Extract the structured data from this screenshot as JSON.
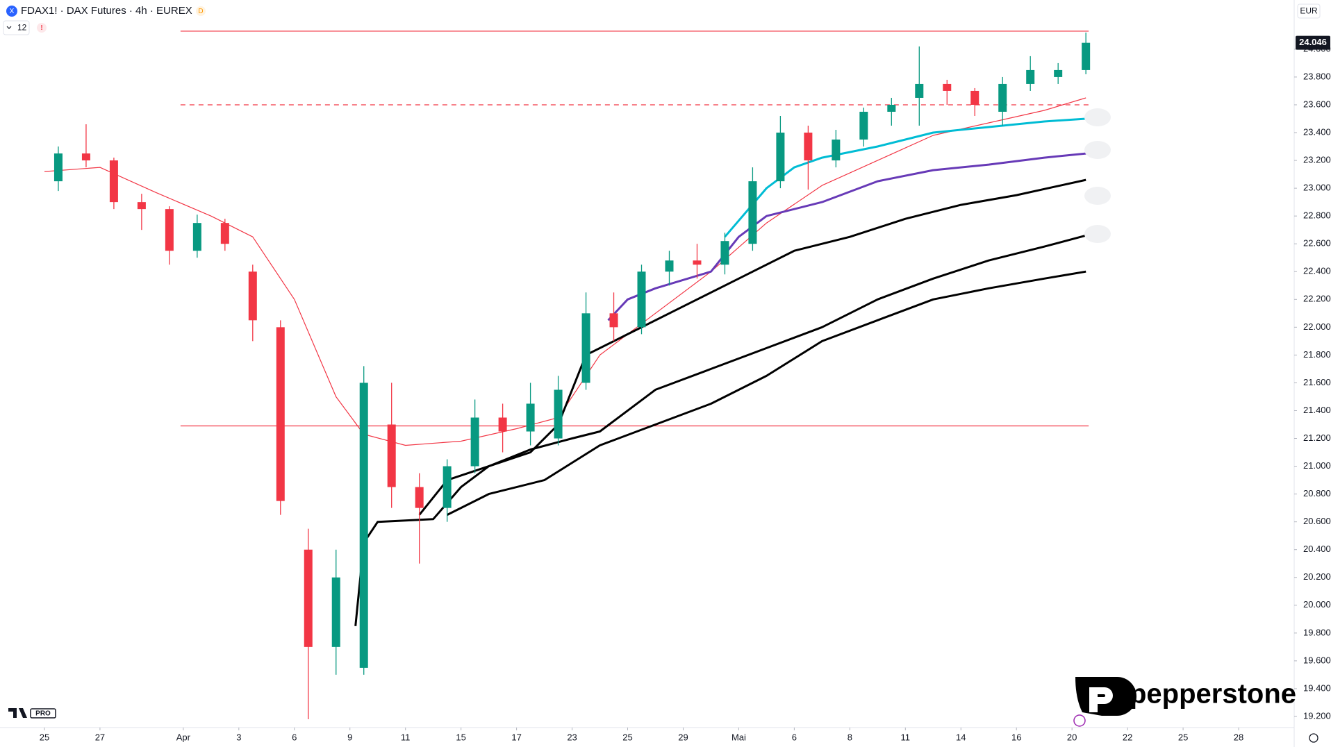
{
  "chart_data": {
    "type": "candlestick",
    "title": "FDAX1! · DAX Futures · 4h · EUREX",
    "badge": "D",
    "indicator_count": 12,
    "currency": "EUR",
    "last_price": {
      "value": 24046,
      "label": "24.046"
    },
    "up_color": "#089981",
    "down_color": "#f23645",
    "xlim": [
      -1.6,
      45
    ],
    "ylim": [
      19120,
      24354
    ],
    "xticks": [
      {
        "value": 0,
        "label": "25"
      },
      {
        "value": 2,
        "label": "27"
      },
      {
        "value": 5,
        "label": "Apr"
      },
      {
        "value": 7,
        "label": "3"
      },
      {
        "value": 9,
        "label": "6"
      },
      {
        "value": 11,
        "label": "9"
      },
      {
        "value": 13,
        "label": "11"
      },
      {
        "value": 15,
        "label": "15"
      },
      {
        "value": 17,
        "label": "17"
      },
      {
        "value": 19,
        "label": "23"
      },
      {
        "value": 21,
        "label": "25"
      },
      {
        "value": 23,
        "label": "29"
      },
      {
        "value": 25,
        "label": "Mai"
      },
      {
        "value": 27,
        "label": "6"
      },
      {
        "value": 29,
        "label": "8"
      },
      {
        "value": 31,
        "label": "11"
      },
      {
        "value": 33,
        "label": "14"
      },
      {
        "value": 35,
        "label": "16"
      },
      {
        "value": 37,
        "label": "20"
      },
      {
        "value": 39,
        "label": "22"
      },
      {
        "value": 41,
        "label": "25"
      },
      {
        "value": 43,
        "label": "28"
      }
    ],
    "yticks": [
      {
        "value": 19200,
        "label": "19.200"
      },
      {
        "value": 19400,
        "label": "19.400"
      },
      {
        "value": 19600,
        "label": "19.600"
      },
      {
        "value": 19800,
        "label": "19.800"
      },
      {
        "value": 20000,
        "label": "20.000"
      },
      {
        "value": 20200,
        "label": "20.200"
      },
      {
        "value": 20400,
        "label": "20.400"
      },
      {
        "value": 20600,
        "label": "20.600"
      },
      {
        "value": 20800,
        "label": "20.800"
      },
      {
        "value": 21000,
        "label": "21.000"
      },
      {
        "value": 21200,
        "label": "21.200"
      },
      {
        "value": 21400,
        "label": "21.400"
      },
      {
        "value": 21600,
        "label": "21.600"
      },
      {
        "value": 21800,
        "label": "21.800"
      },
      {
        "value": 22000,
        "label": "22.000"
      },
      {
        "value": 22200,
        "label": "22.200"
      },
      {
        "value": 22400,
        "label": "22.400"
      },
      {
        "value": 22600,
        "label": "22.600"
      },
      {
        "value": 22800,
        "label": "22.800"
      },
      {
        "value": 23000,
        "label": "23.000"
      },
      {
        "value": 23200,
        "label": "23.200"
      },
      {
        "value": 23400,
        "label": "23.400"
      },
      {
        "value": 23600,
        "label": "23.600"
      },
      {
        "value": 23800,
        "label": "23.800"
      },
      {
        "value": 24000,
        "label": "24.000"
      }
    ],
    "candles": {
      "x": [
        0.5,
        1.5,
        2.5,
        3.5,
        4.5,
        5.5,
        6.5,
        7.5,
        8.5,
        9.5,
        10.5,
        11.5,
        12.5,
        13.5,
        14.5,
        15.5,
        16.5,
        17.5,
        18.5,
        19.5,
        20.5,
        21.5,
        22.5,
        23.5,
        24.5,
        25.5,
        26.5,
        27.5,
        28.5,
        29.5,
        30.5,
        31.5,
        32.5,
        33.5,
        34.5,
        35.5,
        36.5,
        37.5
      ],
      "open": [
        23050,
        23250,
        23200,
        22900,
        22850,
        22550,
        22750,
        22400,
        22000,
        20400,
        19700,
        19550,
        21300,
        20850,
        20700,
        21000,
        21350,
        21250,
        21200,
        21600,
        22100,
        22000,
        22400,
        22480,
        22450,
        22600,
        23050,
        23400,
        23200,
        23350,
        23550,
        23650,
        23750,
        23700,
        23550,
        23750,
        23800,
        23850
      ],
      "high": [
        23300,
        23460,
        23220,
        22960,
        22870,
        22810,
        22780,
        22450,
        22050,
        20550,
        20400,
        21720,
        21600,
        20950,
        21050,
        21480,
        21450,
        21600,
        21650,
        22250,
        22250,
        22450,
        22550,
        22600,
        22680,
        23150,
        23520,
        23450,
        23420,
        23580,
        23650,
        24020,
        23780,
        23720,
        23800,
        23950,
        23900,
        24120
      ],
      "low": [
        22980,
        23150,
        22850,
        22700,
        22450,
        22500,
        22550,
        21900,
        20650,
        19180,
        19500,
        19500,
        20700,
        20300,
        20600,
        20950,
        21100,
        21150,
        21150,
        21550,
        21900,
        21950,
        22300,
        22350,
        22380,
        22550,
        23000,
        22990,
        23150,
        23300,
        23450,
        23450,
        23600,
        23520,
        23450,
        23700,
        23750,
        23820
      ],
      "close": [
        23250,
        23200,
        22900,
        22850,
        22550,
        22750,
        22600,
        22050,
        20750,
        19700,
        20200,
        21600,
        20850,
        20700,
        21000,
        21350,
        21250,
        21450,
        21550,
        22100,
        22000,
        22400,
        22480,
        22450,
        22620,
        23050,
        23400,
        23200,
        23350,
        23550,
        23600,
        23750,
        23700,
        23600,
        23750,
        23850,
        23850,
        24046
      ]
    },
    "lines": [
      {
        "color": "#f23645",
        "width": 1.2,
        "x": [
          0,
          2,
          4,
          6,
          7.5,
          9,
          10.5,
          11.5,
          13,
          15,
          17,
          18.5,
          20,
          22,
          24,
          26,
          28,
          30,
          32,
          34,
          36,
          37.5
        ],
        "values": [
          23120,
          23150,
          22970,
          22800,
          22650,
          22200,
          21500,
          21230,
          21150,
          21180,
          21270,
          21350,
          21800,
          22100,
          22400,
          22750,
          23020,
          23200,
          23380,
          23470,
          23560,
          23650
        ]
      },
      {
        "color": "#00bcd4",
        "width": 3,
        "x": [
          24.5,
          26,
          27,
          28,
          30,
          32,
          34,
          36,
          37.5
        ],
        "values": [
          22650,
          23000,
          23150,
          23220,
          23300,
          23400,
          23440,
          23480,
          23500
        ]
      },
      {
        "color": "#673ab7",
        "width": 3,
        "x": [
          20.3,
          21,
          22,
          24,
          25,
          26,
          28,
          30,
          32,
          34,
          36,
          37.5
        ],
        "values": [
          22050,
          22200,
          22280,
          22400,
          22650,
          22800,
          22900,
          23050,
          23130,
          23170,
          23220,
          23250
        ]
      },
      {
        "color": "#000000",
        "width": 3,
        "x": [
          11.2,
          11.5,
          12,
          14,
          15,
          16,
          17.5,
          18.5,
          19.5,
          21,
          23,
          25,
          27,
          29,
          31,
          33,
          35,
          37.5
        ],
        "values": [
          19850,
          20450,
          20600,
          20620,
          20850,
          21000,
          21100,
          21300,
          21800,
          21950,
          22150,
          22350,
          22550,
          22650,
          22780,
          22880,
          22950,
          23060
        ]
      },
      {
        "color": "#000000",
        "width": 3,
        "x": [
          13.5,
          14.5,
          16,
          17.5,
          19,
          20,
          22,
          24,
          26,
          28,
          30,
          32,
          34,
          36,
          37.5
        ],
        "values": [
          20650,
          20900,
          21000,
          21120,
          21200,
          21250,
          21550,
          21700,
          21850,
          22000,
          22200,
          22350,
          22480,
          22580,
          22660
        ]
      },
      {
        "color": "#000000",
        "width": 3,
        "x": [
          14.5,
          16,
          18,
          20,
          22,
          24,
          26,
          28,
          30,
          32,
          34,
          36,
          37.5
        ],
        "values": [
          20650,
          20800,
          20900,
          21150,
          21300,
          21450,
          21650,
          21900,
          22050,
          22200,
          22280,
          22350,
          22400
        ]
      }
    ],
    "levels": [
      {
        "value": 24130,
        "x": [
          4.9,
          37.6
        ],
        "style": "solid",
        "color": "#f23645"
      },
      {
        "value": 23600,
        "x": [
          4.9,
          37.6
        ],
        "style": "dashed",
        "color": "#f23645"
      },
      {
        "value": 21290,
        "x": [
          4.9,
          37.6
        ],
        "style": "solid",
        "color": "#f23645"
      }
    ]
  },
  "branding": {
    "name": "pepperstone",
    "tier": "PRO"
  }
}
